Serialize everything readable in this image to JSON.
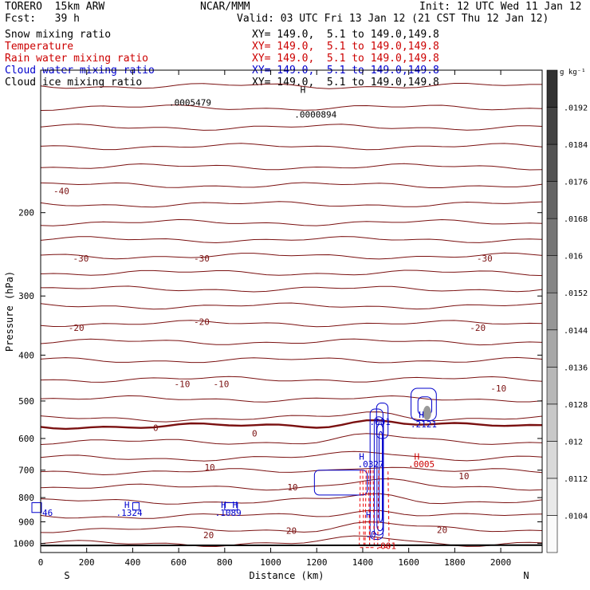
{
  "header": {
    "model": "TORERO  15km ARW",
    "center": "NCAR/MMM",
    "init": "Init: 12 UTC Wed 11 Jan 12",
    "fcst": "Fcst:   39 h",
    "valid": "Valid: 03 UTC Fri 13 Jan 12 (21 CST Thu 12 Jan 12)"
  },
  "fields": [
    {
      "name": "Snow mixing ratio",
      "xy": "XY= 149.0,  5.1 to 149.0,149.8",
      "color": "#000000"
    },
    {
      "name": "Temperature",
      "xy": "XY= 149.0,  5.1 to 149.0,149.8",
      "color": "#cc0000"
    },
    {
      "name": "Rain water mixing ratio",
      "xy": "XY= 149.0,  5.1 to 149.0,149.8",
      "color": "#cc0000"
    },
    {
      "name": "Cloud water mixing ratio",
      "xy": "XY= 149.0,  5.1 to 149.0,149.8",
      "color": "#0000cc"
    },
    {
      "name": "Cloud ice mixing ratio",
      "xy": "XY= 149.0,  5.1 to 149.0,149.8",
      "color": "#000000"
    }
  ],
  "chart_data": {
    "type": "contour cross-section",
    "xlabel": "Distance (km)",
    "ylabel": "Pressure (hPa)",
    "x_ticks": [
      0,
      200,
      400,
      600,
      800,
      1000,
      1200,
      1400,
      1600,
      1800,
      2000
    ],
    "y_ticks": [
      200,
      300,
      400,
      500,
      600,
      700,
      800,
      900,
      1000
    ],
    "xlim": [
      0,
      2180
    ],
    "ylim": [
      1045,
      100
    ],
    "y_scale": "log",
    "endpoints": {
      "left": "S",
      "right": "N"
    },
    "colorbar": {
      "unit": "g kg⁻¹",
      "levels": [
        ".0104",
        ".0112",
        ".012",
        ".0128",
        ".0136",
        ".0144",
        ".0152",
        ".016",
        ".0168",
        ".0176",
        ".0184",
        ".0192"
      ]
    },
    "temperature_contour_labels": [
      {
        "x": 90,
        "p": 180,
        "t": "-40"
      },
      {
        "x": 175,
        "p": 250,
        "t": "-30"
      },
      {
        "x": 700,
        "p": 250,
        "t": "-30"
      },
      {
        "x": 1930,
        "p": 250,
        "t": "-30"
      },
      {
        "x": 155,
        "p": 350,
        "t": "-20"
      },
      {
        "x": 700,
        "p": 340,
        "t": "-20"
      },
      {
        "x": 1900,
        "p": 350,
        "t": "-20"
      },
      {
        "x": 615,
        "p": 460,
        "t": "-10"
      },
      {
        "x": 785,
        "p": 460,
        "t": "-10"
      },
      {
        "x": 1990,
        "p": 470,
        "t": "-10"
      },
      {
        "x": 500,
        "p": 570,
        "t": "0"
      },
      {
        "x": 930,
        "p": 585,
        "t": "0"
      },
      {
        "x": 735,
        "p": 690,
        "t": "10"
      },
      {
        "x": 1095,
        "p": 760,
        "t": "10"
      },
      {
        "x": 1840,
        "p": 720,
        "t": "10"
      },
      {
        "x": 730,
        "p": 960,
        "t": "20"
      },
      {
        "x": 1090,
        "p": 940,
        "t": "20"
      },
      {
        "x": 1745,
        "p": 935,
        "t": "20"
      }
    ],
    "annotations": [
      {
        "x": 375,
        "p": 828,
        "t": "H",
        "c": "#0000cc"
      },
      {
        "x": 385,
        "p": 860,
        "t": ".1324",
        "c": "#0000cc"
      },
      {
        "x": 795,
        "p": 828,
        "t": "H",
        "c": "#0000cc"
      },
      {
        "x": 845,
        "p": 828,
        "t": "H",
        "c": "#0000cc"
      },
      {
        "x": 815,
        "p": 860,
        "t": ".1089",
        "c": "#0000cc"
      },
      {
        "x": 30,
        "p": 860,
        "t": "46",
        "c": "#0000cc"
      },
      {
        "x": 1475,
        "p": 553,
        "t": ".001",
        "c": "#0000cc"
      },
      {
        "x": 1655,
        "p": 534,
        "t": "H",
        "c": "#0000cc"
      },
      {
        "x": 1665,
        "p": 560,
        "t": ".2121",
        "c": "#0000cc"
      },
      {
        "x": 1395,
        "p": 655,
        "t": "H",
        "c": "#0000cc"
      },
      {
        "x": 1435,
        "p": 680,
        "t": ".0327",
        "c": "#0000cc"
      },
      {
        "x": 1635,
        "p": 655,
        "t": "H",
        "c": "#cc0000"
      },
      {
        "x": 1655,
        "p": 680,
        "t": ".0005",
        "c": "#cc0000"
      },
      {
        "x": 1425,
        "p": 870,
        "t": "H",
        "c": "#0000cc"
      },
      {
        "x": 1435,
        "p": 955,
        "t": ".0",
        "c": "#0000cc"
      },
      {
        "x": 1500,
        "p": 1012,
        "t": ".001",
        "c": "#cc0000"
      },
      {
        "x": 1140,
        "p": 110,
        "t": "H",
        "c": "#000000"
      },
      {
        "x": 650,
        "p": 117,
        "t": ".0005479",
        "c": "#000000"
      },
      {
        "x": 1195,
        "p": 124,
        "t": ".0000894",
        "c": "#000000"
      }
    ]
  }
}
